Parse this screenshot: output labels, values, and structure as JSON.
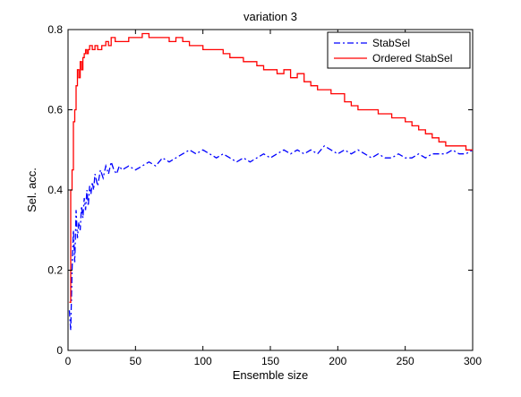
{
  "chart_data": {
    "type": "line",
    "title": "variation 3",
    "xlabel": "Ensemble size",
    "ylabel": "Sel. acc.",
    "xlim": [
      0,
      300
    ],
    "ylim": [
      0,
      0.8
    ],
    "xticks": [
      0,
      50,
      100,
      150,
      200,
      250,
      300
    ],
    "yticks": [
      0,
      0.2,
      0.4,
      0.6,
      0.8
    ],
    "xtick_labels": [
      "0",
      "50",
      "100",
      "150",
      "200",
      "250",
      "300"
    ],
    "ytick_labels": [
      "0",
      "0.2",
      "0.4",
      "0.6",
      "0.8"
    ],
    "grid": false,
    "legend_position": "top-right",
    "series": [
      {
        "name": "StabSel",
        "color": "#0000ff",
        "style": "dash-dot",
        "x": [
          1,
          2,
          3,
          4,
          5,
          6,
          7,
          8,
          9,
          10,
          11,
          12,
          13,
          14,
          15,
          16,
          17,
          18,
          19,
          20,
          22,
          24,
          26,
          28,
          30,
          32,
          34,
          36,
          38,
          40,
          45,
          50,
          55,
          60,
          65,
          70,
          75,
          80,
          85,
          90,
          95,
          100,
          105,
          110,
          115,
          120,
          125,
          130,
          135,
          140,
          145,
          150,
          155,
          160,
          165,
          170,
          175,
          180,
          185,
          190,
          195,
          200,
          205,
          210,
          215,
          220,
          225,
          230,
          235,
          240,
          245,
          250,
          255,
          260,
          265,
          270,
          275,
          280,
          285,
          290,
          295,
          300
        ],
        "y": [
          0.1,
          0.05,
          0.2,
          0.3,
          0.22,
          0.35,
          0.28,
          0.32,
          0.3,
          0.36,
          0.33,
          0.38,
          0.35,
          0.4,
          0.36,
          0.41,
          0.39,
          0.42,
          0.4,
          0.44,
          0.41,
          0.45,
          0.43,
          0.46,
          0.44,
          0.47,
          0.45,
          0.44,
          0.46,
          0.45,
          0.46,
          0.45,
          0.46,
          0.47,
          0.46,
          0.48,
          0.47,
          0.48,
          0.49,
          0.5,
          0.49,
          0.5,
          0.49,
          0.48,
          0.49,
          0.48,
          0.47,
          0.48,
          0.47,
          0.48,
          0.49,
          0.48,
          0.49,
          0.5,
          0.49,
          0.5,
          0.49,
          0.5,
          0.49,
          0.51,
          0.5,
          0.49,
          0.5,
          0.49,
          0.5,
          0.49,
          0.48,
          0.49,
          0.48,
          0.48,
          0.49,
          0.48,
          0.48,
          0.49,
          0.48,
          0.49,
          0.49,
          0.49,
          0.5,
          0.49,
          0.49,
          0.5
        ]
      },
      {
        "name": "Ordered StabSel",
        "color": "#ff0000",
        "style": "solid",
        "x": [
          1,
          2,
          3,
          4,
          5,
          6,
          7,
          8,
          9,
          10,
          11,
          12,
          13,
          14,
          15,
          16,
          18,
          20,
          22,
          25,
          28,
          30,
          32,
          35,
          40,
          45,
          50,
          55,
          60,
          65,
          70,
          75,
          80,
          85,
          90,
          95,
          100,
          105,
          110,
          115,
          120,
          125,
          130,
          135,
          140,
          145,
          150,
          155,
          160,
          165,
          170,
          175,
          180,
          185,
          190,
          195,
          200,
          205,
          210,
          215,
          220,
          225,
          230,
          235,
          240,
          245,
          250,
          255,
          260,
          265,
          270,
          275,
          280,
          285,
          290,
          295,
          300
        ],
        "y": [
          0.12,
          0.4,
          0.45,
          0.57,
          0.6,
          0.66,
          0.7,
          0.68,
          0.72,
          0.7,
          0.73,
          0.74,
          0.75,
          0.74,
          0.75,
          0.76,
          0.75,
          0.76,
          0.75,
          0.76,
          0.77,
          0.76,
          0.78,
          0.77,
          0.77,
          0.78,
          0.78,
          0.79,
          0.78,
          0.78,
          0.78,
          0.77,
          0.78,
          0.77,
          0.76,
          0.76,
          0.75,
          0.75,
          0.75,
          0.74,
          0.73,
          0.73,
          0.72,
          0.72,
          0.71,
          0.7,
          0.7,
          0.69,
          0.7,
          0.68,
          0.69,
          0.67,
          0.66,
          0.65,
          0.65,
          0.64,
          0.64,
          0.62,
          0.61,
          0.6,
          0.6,
          0.6,
          0.59,
          0.59,
          0.58,
          0.58,
          0.57,
          0.56,
          0.55,
          0.54,
          0.53,
          0.52,
          0.51,
          0.51,
          0.51,
          0.5,
          0.5
        ]
      }
    ]
  }
}
